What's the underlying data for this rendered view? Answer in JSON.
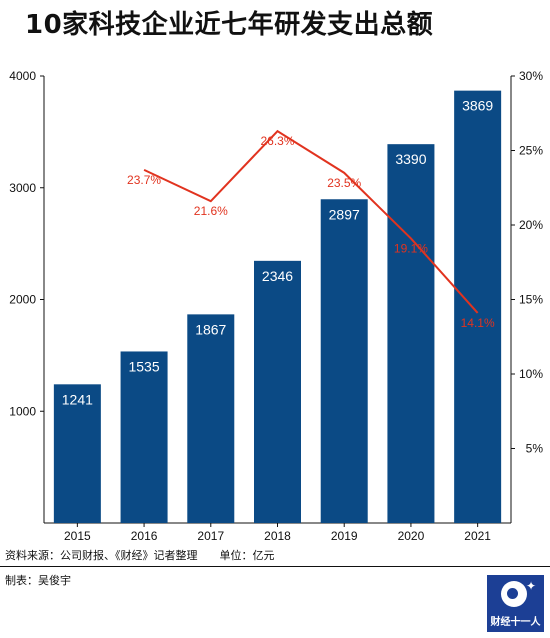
{
  "title": "10家科技企业近七年研发支出总额",
  "source": "资料来源：公司财报、《财经》记者整理",
  "unit": "单位：亿元",
  "maker": "制表：吴俊宇",
  "logo_text": "财经十一人",
  "colors": {
    "bar": "#0b4a85",
    "line": "#e1331f",
    "logo": "#1c3f95"
  },
  "chart_data": {
    "type": "bar",
    "categories": [
      "2015",
      "2016",
      "2017",
      "2018",
      "2019",
      "2020",
      "2021"
    ],
    "series": [
      {
        "type": "bar",
        "axis": "left",
        "values": [
          1241,
          1535,
          1867,
          2346,
          2897,
          3390,
          3869
        ],
        "labels": [
          "1241",
          "1535",
          "1867",
          "2346",
          "2897",
          "3390",
          "3869"
        ]
      },
      {
        "type": "line",
        "axis": "right",
        "values": [
          null,
          23.7,
          21.6,
          26.3,
          23.5,
          19.1,
          14.1
        ],
        "labels": [
          "",
          "23.7%",
          "21.6%",
          "26.3%",
          "23.5%",
          "19.1%",
          "14.1%"
        ]
      }
    ],
    "y_left": {
      "ylim": [
        0,
        4000
      ],
      "ticks": [
        "1000",
        "2000",
        "3000",
        "4000"
      ],
      "tick_values": [
        1000,
        2000,
        3000,
        4000
      ]
    },
    "y_right": {
      "ylim": [
        0,
        30
      ],
      "ticks": [
        "5%",
        "10%",
        "15%",
        "20%",
        "25%",
        "30%"
      ],
      "tick_values": [
        5,
        10,
        15,
        20,
        25,
        30
      ]
    },
    "grid": false,
    "legend": "none"
  }
}
